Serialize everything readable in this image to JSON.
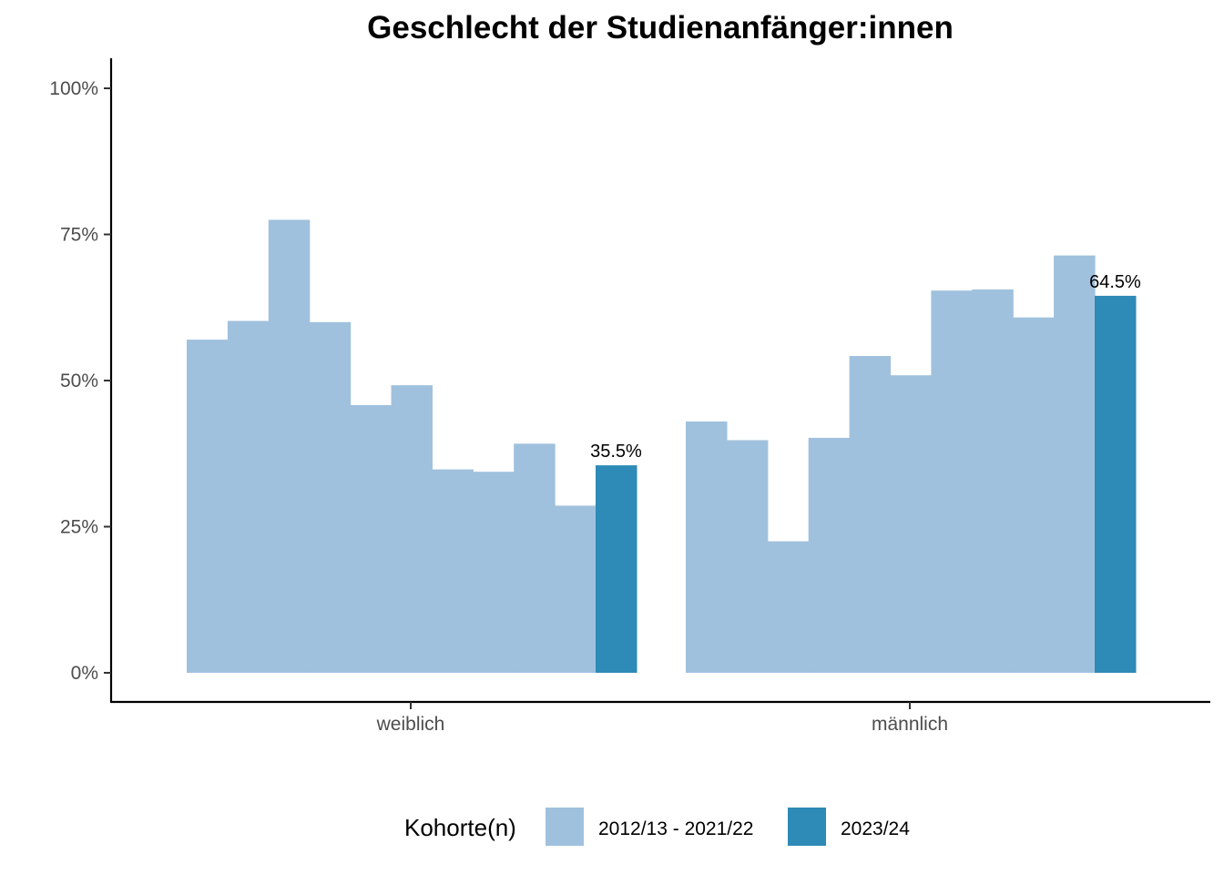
{
  "chart_data": {
    "type": "bar",
    "title": "Geschlecht der Studienanfänger:innen",
    "xlabel": "",
    "ylabel": "",
    "ylim": [
      0,
      100
    ],
    "y_ticks": [
      "0%",
      "25%",
      "50%",
      "75%",
      "100%"
    ],
    "y_tick_values": [
      0,
      25,
      50,
      75,
      100
    ],
    "categories": [
      "weiblich",
      "männlich"
    ],
    "grid": false,
    "legend": {
      "title": "Kohorte(n)",
      "placement": "bottom",
      "entries": [
        {
          "label": "2012/13 - 2021/22",
          "color": "#a0c1dd"
        },
        {
          "label": "2023/24",
          "color": "#2e8ab7"
        }
      ]
    },
    "groups": [
      {
        "category": "weiblich",
        "historic": [
          57,
          60.2,
          77.5,
          60,
          45.8,
          49.2,
          34.8,
          34.4,
          39.2,
          28.6
        ],
        "current": 35.5,
        "current_label": "35.5%"
      },
      {
        "category": "männlich",
        "historic": [
          43,
          39.8,
          22.5,
          40.2,
          54.2,
          50.9,
          65.4,
          65.6,
          60.8,
          71.4
        ],
        "current": 64.5,
        "current_label": "64.5%"
      }
    ]
  }
}
